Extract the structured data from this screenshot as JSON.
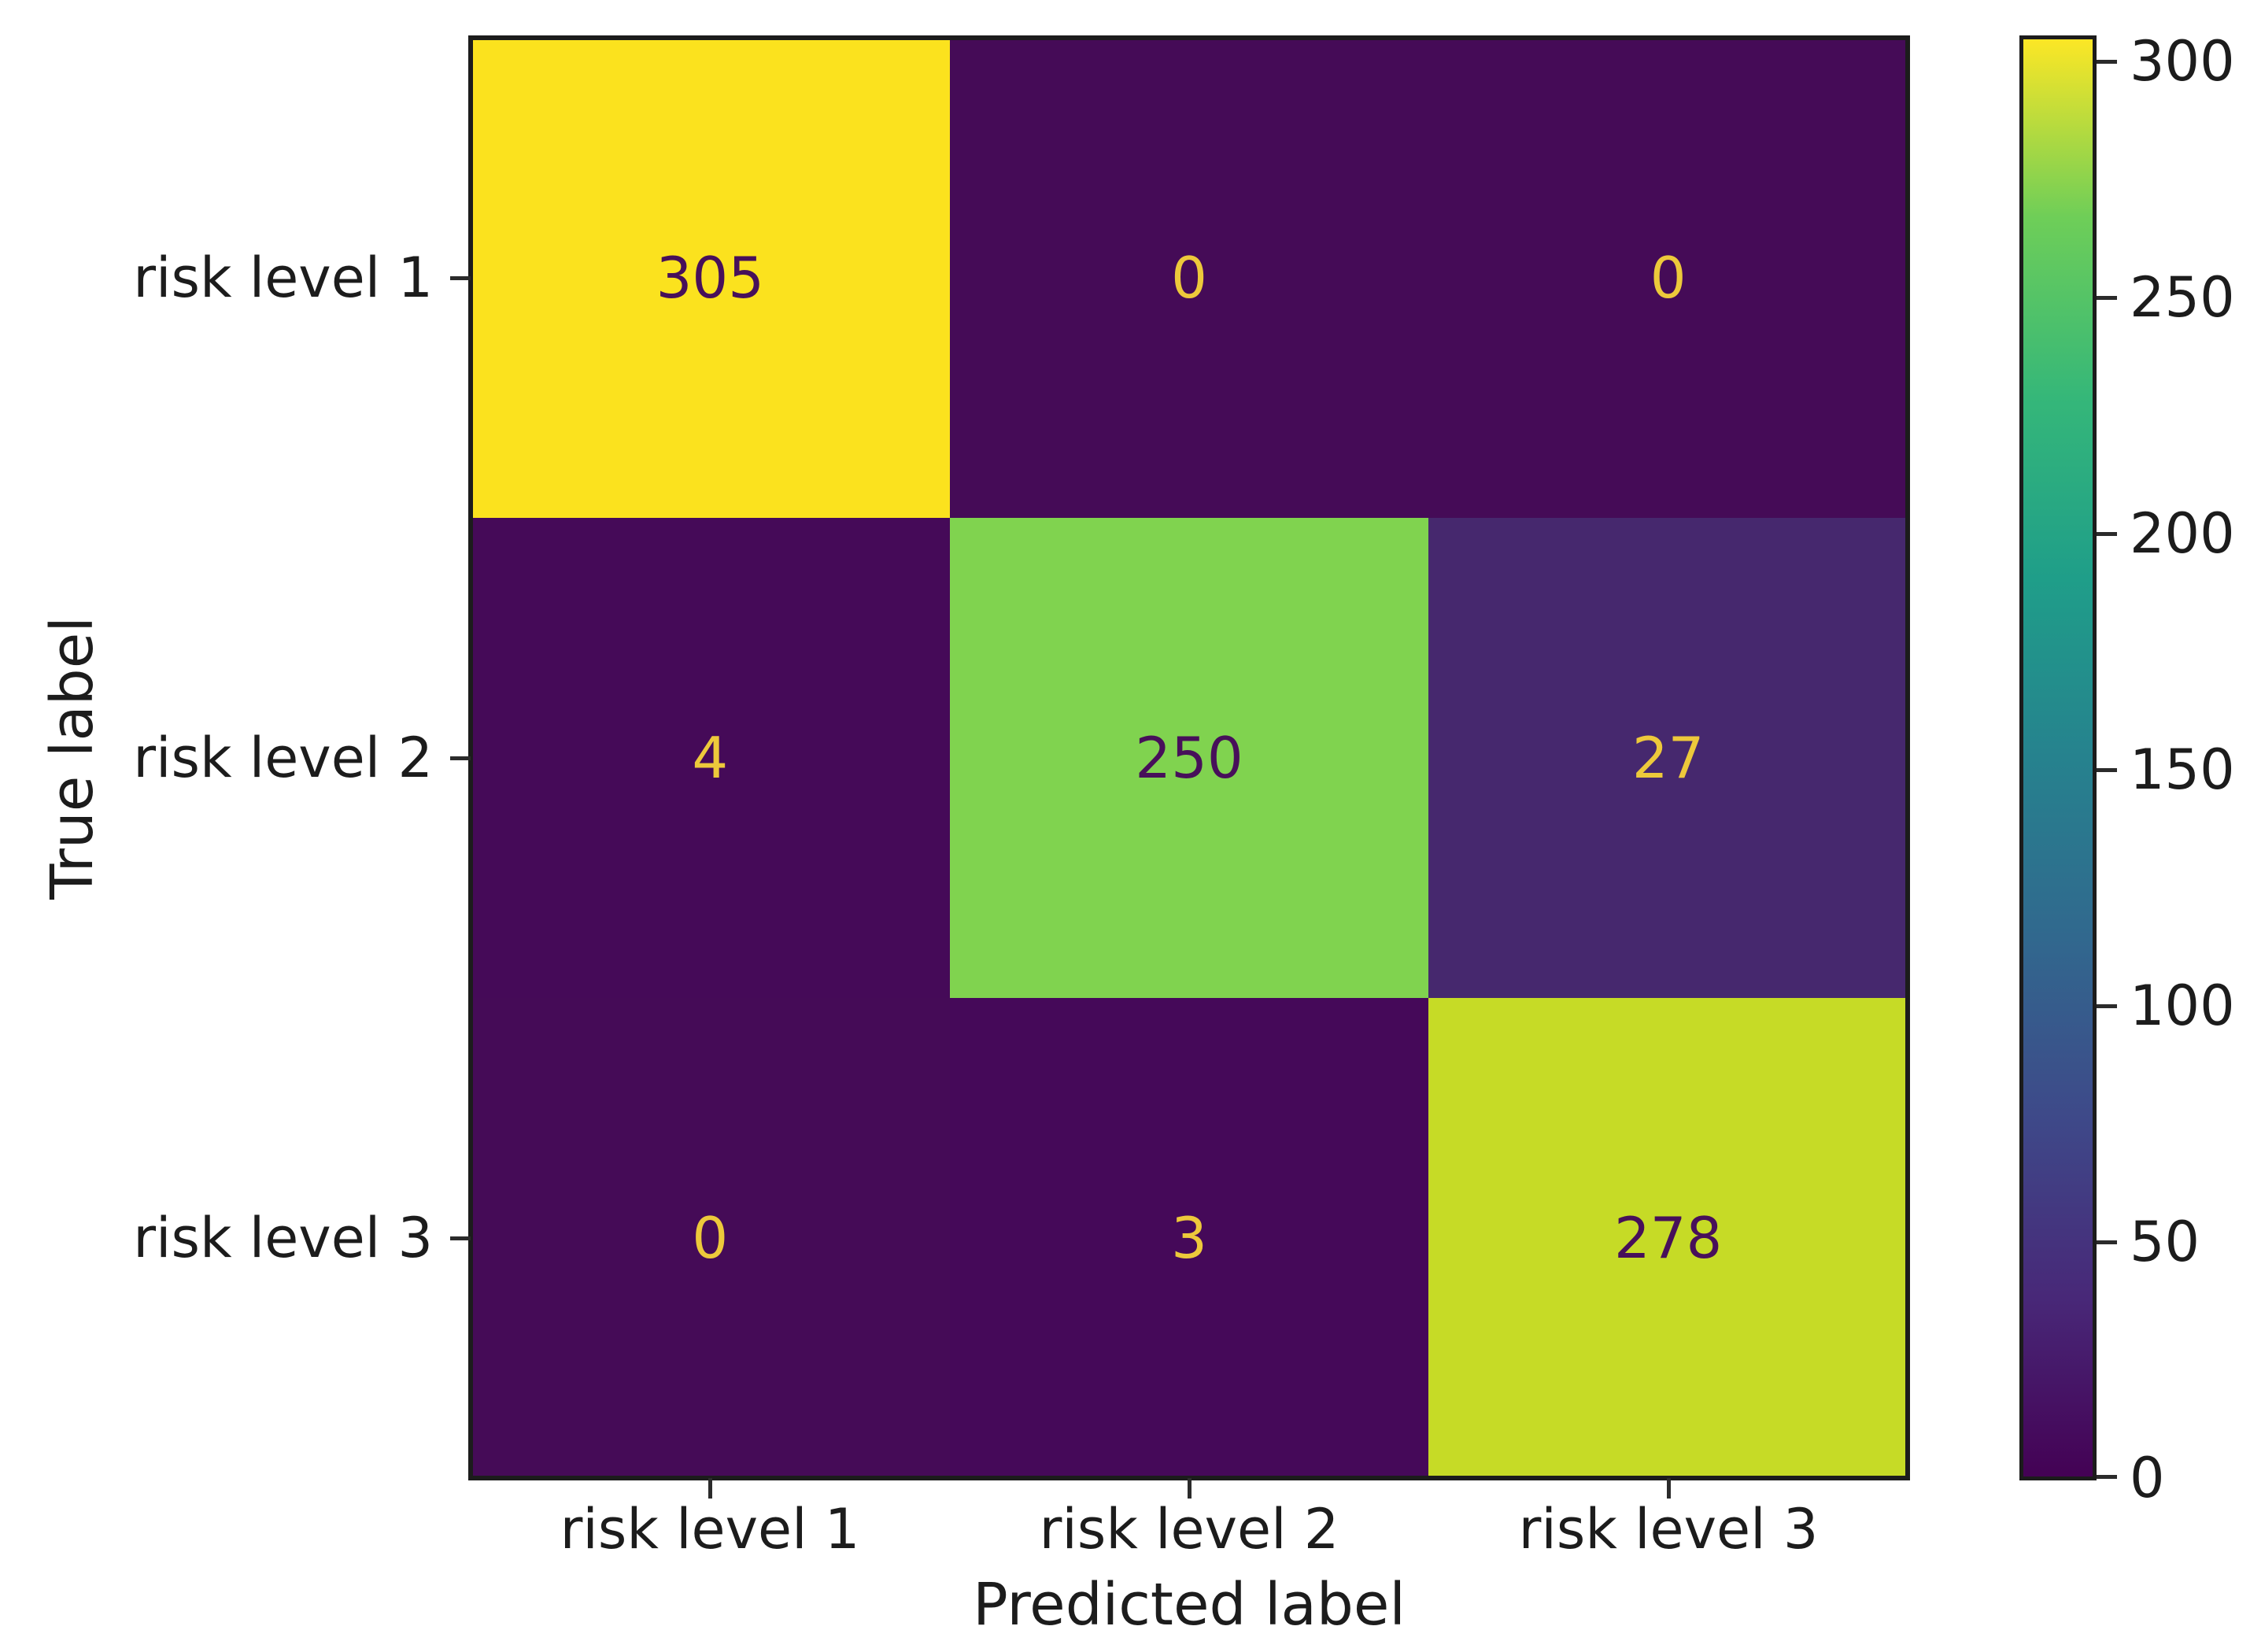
{
  "figure": {
    "background": "#ffffff",
    "spine_color": "#1c1c1c",
    "text_color": "#1c1c1c"
  },
  "chart_data": {
    "type": "heatmap",
    "subtype": "confusion-matrix",
    "title": "",
    "xlabel": "Predicted label",
    "ylabel": "True label",
    "x_categories": [
      "risk level 1",
      "risk level 2",
      "risk level 3"
    ],
    "y_categories": [
      "risk level 1",
      "risk level 2",
      "risk level 3"
    ],
    "matrix": [
      [
        305,
        0,
        0
      ],
      [
        4,
        250,
        27
      ],
      [
        0,
        3,
        278
      ]
    ],
    "colormap": "viridis",
    "vmin": 0,
    "vmax": 305,
    "grid": false,
    "legend_position": "right-colorbar",
    "colorbar": {
      "position": "right",
      "ticks_top_to_bottom": [
        "300",
        "250",
        "200",
        "150",
        "100",
        "50",
        "0"
      ]
    }
  },
  "cells": [
    {
      "value": "305",
      "bg": "#fbe21e",
      "fg": "#47105a"
    },
    {
      "value": "0",
      "bg": "#450b57",
      "fg": "#edc93b"
    },
    {
      "value": "0",
      "bg": "#450b57",
      "fg": "#edc93b"
    },
    {
      "value": "4",
      "bg": "#450a58",
      "fg": "#edc93b"
    },
    {
      "value": "250",
      "bg": "#80d34f",
      "fg": "#47105a"
    },
    {
      "value": "27",
      "bg": "#46286e",
      "fg": "#edc93b"
    },
    {
      "value": "0",
      "bg": "#450b57",
      "fg": "#edc93b"
    },
    {
      "value": "3",
      "bg": "#450959",
      "fg": "#edc93b"
    },
    {
      "value": "278",
      "bg": "#c6db26",
      "fg": "#47105a"
    }
  ],
  "colorbar_gradient_bottom_to_top": [
    "#440154",
    "#482878",
    "#3e4989",
    "#31688e",
    "#26828e",
    "#1f9e89",
    "#35b779",
    "#6ece58",
    "#fde725"
  ]
}
